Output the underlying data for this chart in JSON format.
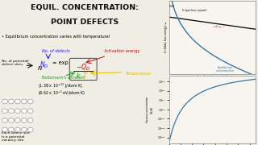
{
  "title_line1": "EQUIL. CONCENTRATION:",
  "title_line2": "POINT DEFECTS",
  "bullet": "Equilibrium concentration varies with temperature!",
  "bg_color": "#f0ede4",
  "title_color": "#111111",
  "nd_color": "#1a1aff",
  "qd_color": "#cc0000",
  "k_color": "#00aa00",
  "t_color": "#ddbb00",
  "activation_color": "#cc0000",
  "temperature_color": "#ddbb00",
  "boltzmann_color": "#00aa00",
  "lattice_color": "#999999",
  "plot_border": "#888888",
  "curve_color": "#3377aa",
  "perfect_color": "#222222",
  "mix_color": "#cc4444"
}
